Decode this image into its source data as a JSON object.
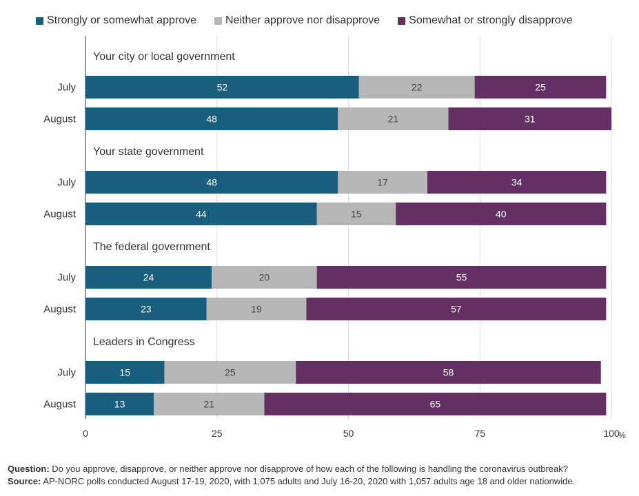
{
  "legend": {
    "approve": "Strongly or somewhat approve",
    "neither": "Neither approve nor disapprove",
    "disapprove": "Somewhat or strongly disapprove"
  },
  "colors": {
    "approve": "#1a5e7e",
    "neither": "#b7b7b7",
    "disapprove": "#642f63"
  },
  "footer": {
    "question_label": "Question:",
    "question_text": "Do you approve, disapprove, or neither approve nor disapprove of how each of the following is handling the coronavirus outbreak?",
    "source_label": "Source:",
    "source_text": "AP-NORC polls conducted August 17-19, 2020, with 1,075 adults and July 16-20, 2020 with 1,057 adults age 18 and older nationwide."
  },
  "chart_data": {
    "type": "bar",
    "orientation": "horizontal",
    "stacked": true,
    "xlim": [
      0,
      100
    ],
    "xticks": [
      "0",
      "25",
      "50",
      "75",
      "100"
    ],
    "x_unit": "%",
    "grid": true,
    "legend_position": "top",
    "series": [
      {
        "name": "Strongly or somewhat approve",
        "key": "approve"
      },
      {
        "name": "Neither approve nor disapprove",
        "key": "neither"
      },
      {
        "name": "Somewhat or strongly disapprove",
        "key": "disapprove"
      }
    ],
    "groups": [
      {
        "title": "Your city or local government",
        "rows": [
          {
            "label": "July",
            "values": [
              52,
              22,
              25
            ]
          },
          {
            "label": "August",
            "values": [
              48,
              21,
              31
            ]
          }
        ]
      },
      {
        "title": "Your state government",
        "rows": [
          {
            "label": "July",
            "values": [
              48,
              17,
              34
            ]
          },
          {
            "label": "August",
            "values": [
              44,
              15,
              40
            ]
          }
        ]
      },
      {
        "title": "The federal government",
        "rows": [
          {
            "label": "July",
            "values": [
              24,
              20,
              55
            ]
          },
          {
            "label": "August",
            "values": [
              23,
              19,
              57
            ]
          }
        ]
      },
      {
        "title": "Leaders in Congress",
        "rows": [
          {
            "label": "July",
            "values": [
              15,
              25,
              58
            ]
          },
          {
            "label": "August",
            "values": [
              13,
              21,
              65
            ]
          }
        ]
      }
    ]
  }
}
